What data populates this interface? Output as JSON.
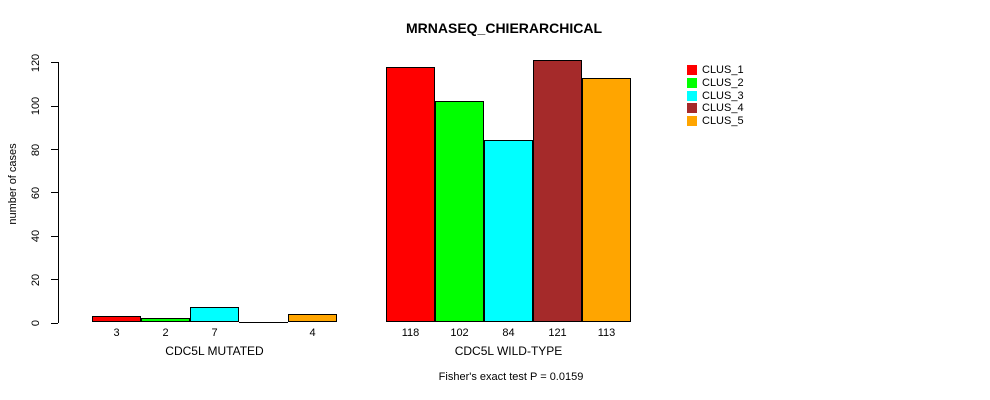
{
  "chart_data": {
    "type": "bar",
    "title": "MRNASEQ_CHIERARCHICAL",
    "ylabel": "number of cases",
    "ylim": [
      0,
      120
    ],
    "yticks": [
      0,
      20,
      40,
      60,
      80,
      100,
      120
    ],
    "categories": [
      "CDC5L MUTATED",
      "CDC5L WILD-TYPE"
    ],
    "series": [
      {
        "name": "CLUS_1",
        "color": "#FF0000",
        "values": [
          3,
          118
        ]
      },
      {
        "name": "CLUS_2",
        "color": "#00FF00",
        "values": [
          2,
          102
        ]
      },
      {
        "name": "CLUS_3",
        "color": "#00FFFF",
        "values": [
          7,
          84
        ]
      },
      {
        "name": "CLUS_4",
        "color": "#A52A2A",
        "values": [
          0,
          121
        ]
      },
      {
        "name": "CLUS_5",
        "color": "#FFA500",
        "values": [
          4,
          113
        ]
      }
    ],
    "bar_value_labels": [
      [
        "3",
        "2",
        "7",
        "",
        "4"
      ],
      [
        "118",
        "102",
        "84",
        "121",
        "113"
      ]
    ],
    "note": "Fisher's exact test P = 0.0159",
    "legend_position": "right",
    "grid": false,
    "axis_color": "#000000",
    "bar_border_color": "#000000",
    "text_color": "#000000",
    "background_color": "#FFFFFF"
  }
}
